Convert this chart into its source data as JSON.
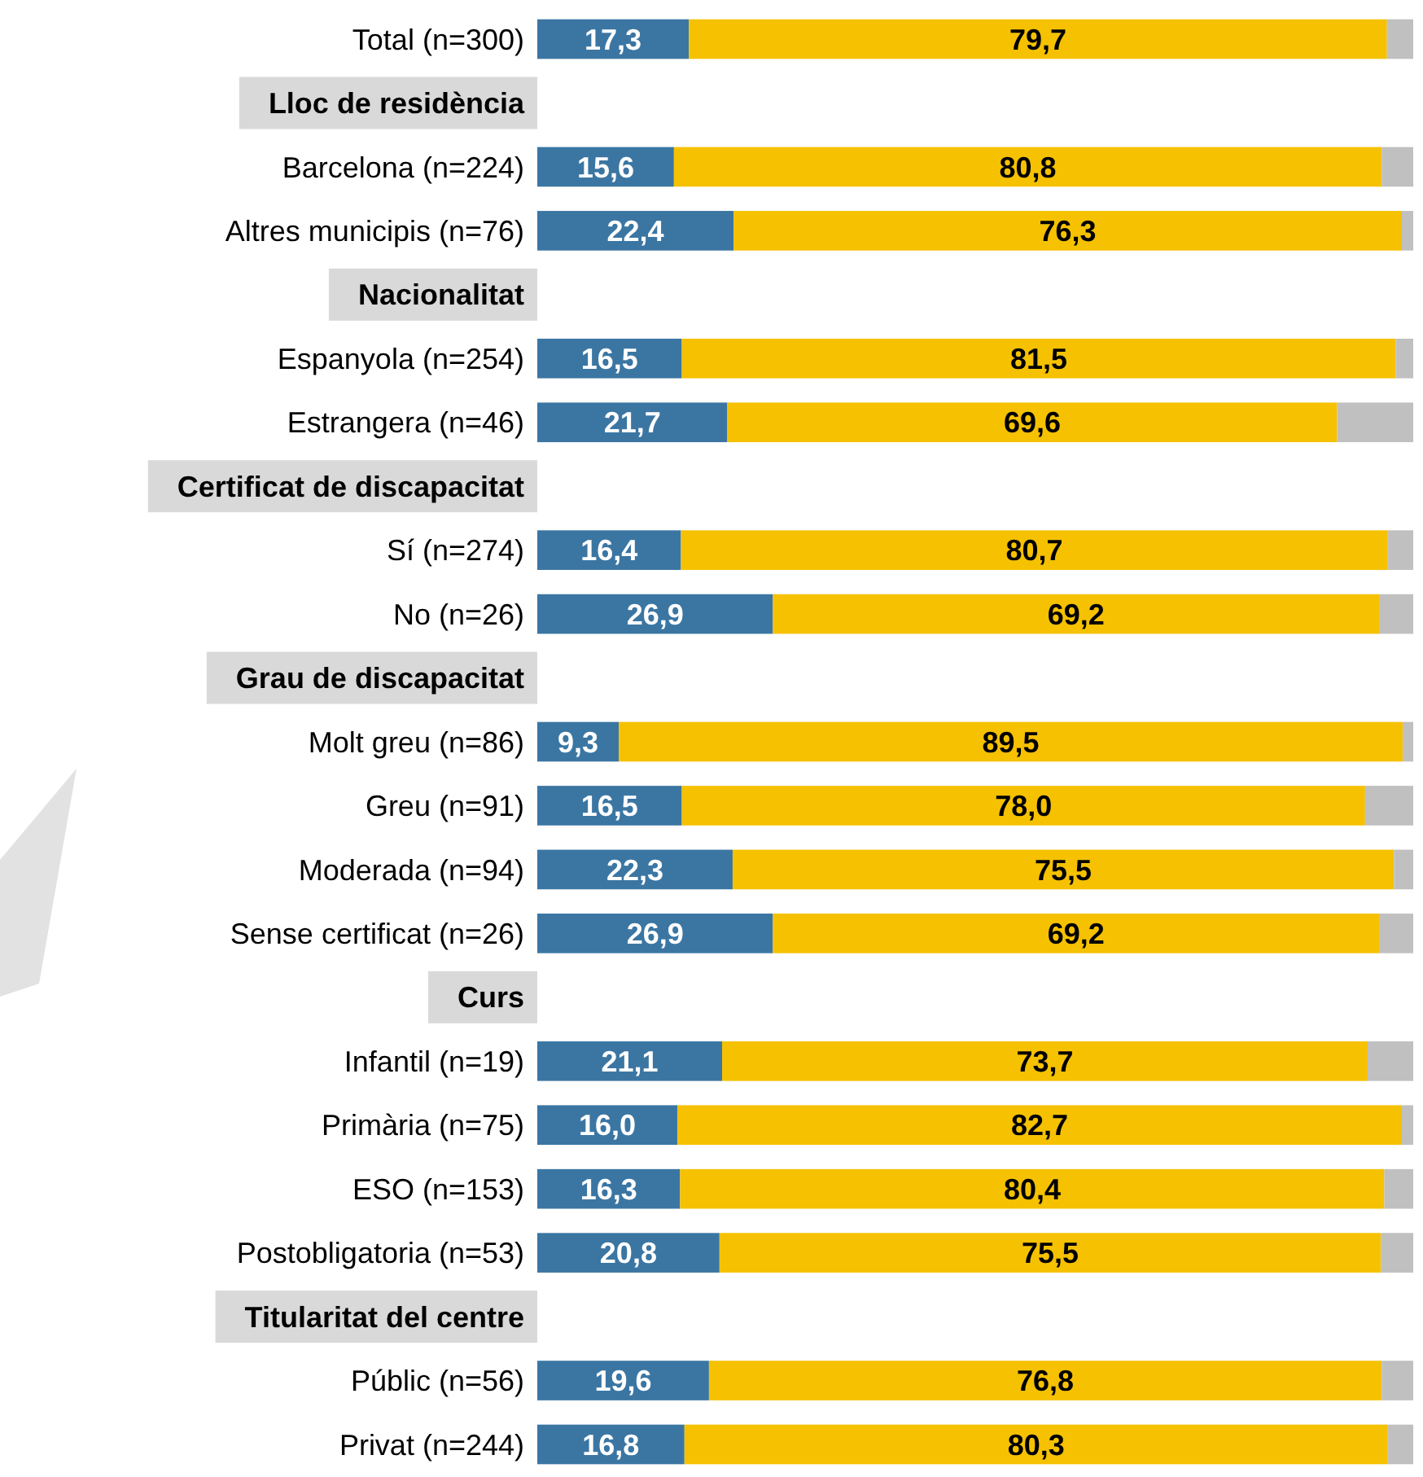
{
  "chart_data": {
    "type": "bar",
    "orientation": "horizontal",
    "stacked": true,
    "xlim": [
      0,
      100
    ],
    "tick_labels": "y",
    "categories": [
      "Total (n=300)",
      "Lloc de residència",
      "Barcelona (n=224)",
      "Altres municipis (n=76)",
      "Nacionalitat",
      "Espanyola (n=254)",
      "Estrangera (n=46)",
      "Certificat de discapacitat",
      "Sí (n=274)",
      "No (n=26)",
      "Grau de discapacitat",
      "Molt greu (n=86)",
      "Greu (n=91)",
      "Moderada (n=94)",
      "Sense certificat (n=26)",
      "Curs",
      "Infantil (n=19)",
      "Primària (n=75)",
      "ESO (n=153)",
      "Postobligatoria (n=53)",
      "Titularitat del centre",
      "Públic (n=56)",
      "Privat (n=244)"
    ],
    "series": [
      {
        "color": "#3b76a3",
        "values": [
          17.3,
          null,
          15.6,
          22.4,
          null,
          16.5,
          21.7,
          null,
          16.4,
          26.9,
          null,
          9.3,
          16.5,
          22.3,
          26.9,
          null,
          21.1,
          16.0,
          16.3,
          20.8,
          null,
          19.6,
          16.8
        ],
        "value_labels": [
          "17,3",
          null,
          "15,6",
          "22,4",
          null,
          "16,5",
          "21,7",
          null,
          "16,4",
          "26,9",
          null,
          "9,3",
          "16,5",
          "22,3",
          "26,9",
          null,
          "21,1",
          "16,0",
          "16,3",
          "20,8",
          null,
          "19,6",
          "16,8"
        ]
      },
      {
        "color": "#f5c100",
        "values": [
          79.7,
          null,
          80.8,
          76.3,
          null,
          81.5,
          69.6,
          null,
          80.7,
          69.2,
          null,
          89.5,
          78.0,
          75.5,
          69.2,
          null,
          73.7,
          82.7,
          80.4,
          75.5,
          null,
          76.8,
          80.3
        ],
        "value_labels": [
          "79,7",
          null,
          "80,8",
          "76,3",
          null,
          "81,5",
          "69,6",
          null,
          "80,7",
          "69,2",
          null,
          "89,5",
          "78,0",
          "75,5",
          "69,2",
          null,
          "73,7",
          "82,7",
          "80,4",
          "75,5",
          null,
          "76,8",
          "80,3"
        ]
      },
      {
        "color": "#c0c0c0",
        "values": [
          3.0,
          null,
          3.6,
          1.3,
          null,
          2.0,
          8.7,
          null,
          2.9,
          3.9,
          null,
          1.2,
          5.5,
          2.2,
          3.9,
          null,
          5.2,
          1.3,
          3.3,
          3.7,
          null,
          3.6,
          2.9
        ]
      }
    ]
  }
}
